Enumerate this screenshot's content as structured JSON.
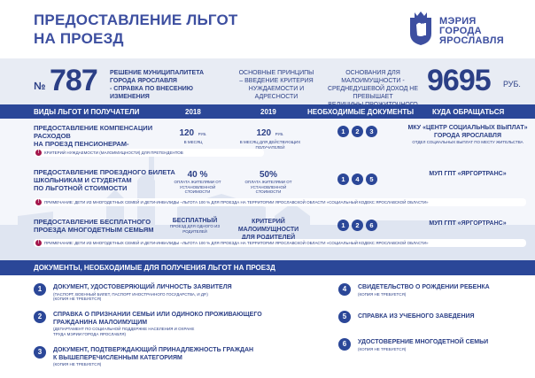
{
  "header": {
    "title_line1": "ПРЕДОСТАВЛЕНИЕ ЛЬГОТ",
    "title_line2": "НА ПРОЕЗД",
    "logo_line1": "МЭРИЯ",
    "logo_line2": "ГОРОДА",
    "logo_line3": "ЯРОСЛАВЛЯ"
  },
  "stats": {
    "no_label": "№",
    "decision_number": "787",
    "decision_text_1": "РЕШЕНИЕ МУНИЦИПАЛИТЕТА",
    "decision_text_2": "ГОРОДА ЯРОСЛАВЛЯ",
    "decision_text_3": "- СПРАВКА ПО ВНЕСЕНИЮ ИЗМЕНЕНИЯ",
    "principles_1": "ОСНОВНЫЕ ПРИНЦИПЫ",
    "principles_2": "– ВВЕДЕНИЕ КРИТЕРИЯ",
    "principles_3": "НУЖДАЕМОСТИ И АДРЕСНОСТИ",
    "basis_1": "ОСНОВАНИЯ ДЛЯ МАЛОИМУЩНОСТИ -",
    "basis_2": "СРЕДНЕДУШЕВОЙ ДОХОД НЕ ПРЕВЫШАЕТ",
    "basis_3": "ВЕЛИЧИНЫ ПРОЖИТОЧНОГО МИНИМУМА",
    "min_income": "9695",
    "currency": "РУБ."
  },
  "table": {
    "headers": {
      "kinds": "ВИДЫ ЛЬГОТ И ПОЛУЧАТЕЛИ",
      "y2018": "2018",
      "y2019": "2019",
      "docs": "НЕОБХОДИМЫЕ ДОКУМЕНТЫ",
      "where": "КУДА ОБРАЩАТЬСЯ"
    },
    "rows": [
      {
        "title_1": "ПРЕДОСТАВЛЕНИЕ КОМПЕНСАЦИИ РАСХОДОВ",
        "title_2": "НА ПРОЕЗД ПЕНСИОНЕРАМ-ОРДЕНОНОСЦАМ",
        "v2018": "120",
        "v2018_unit": "РУБ.",
        "v2018_sub": "В МЕСЯЦ",
        "v2019": "120",
        "v2019_unit": "РУБ.",
        "v2019_sub": "В МЕСЯЦ ДЛЯ ДЕЙСТВУЮЩИХ ПОЛУЧАТЕЛЕЙ",
        "docs": [
          "1",
          "2",
          "3"
        ],
        "where_1": "МКУ «ЦЕНТР СОЦИАЛЬНЫХ ВЫПЛАТ»",
        "where_2": "ГОРОДА ЯРОСЛАВЛЯ",
        "where_sub": "ОТДЕЛ СОЦИАЛЬНЫХ ВЫПЛАТ ПО МЕСТУ ЖИТЕЛЬСТВА",
        "note": "КРИТЕРИЙ НУЖДАЕМОСТИ (МАЛОИМУЩНОСТИ) ДЛЯ ПРЕТЕНДЕНТОВ"
      },
      {
        "title_1": "ПРЕДОСТАВЛЕНИЕ ПРОЕЗДНОГО БИЛЕТА",
        "title_2": "ШКОЛЬНИКАМ И СТУДЕНТАМ",
        "title_3": "ПО ЛЬГОТНОЙ СТОИМОСТИ",
        "v2018": "40 %",
        "v2018_sub": "ОПЛАТА ЖИТЕЛЯМИ ОТ УСТАНОВЛЕННОЙ СТОИМОСТИ",
        "v2019": "50%",
        "v2019_sub": "ОПЛАТА ЖИТЕЛЯМИ ОТ УСТАНОВЛЕННОЙ СТОИМОСТИ",
        "docs": [
          "1",
          "4",
          "5"
        ],
        "where_1": "МУП ГПТ «ЯРГОРТРАНС»",
        "note": "ПРИМЕЧАНИЕ: ДЕТИ ИЗ МНОГОДЕТНЫХ СЕМЕЙ И ДЕТИ-ИНВАЛИДЫ –ЛЬГОТА 100 % ДЛЯ ПРОЕЗДА НА ТЕРРИТОРИИ ЯРОСЛАВСКОЙ ОБЛАСТИ «СОЦИАЛЬНЫЙ КОДЕКС ЯРОСЛАВСКОЙ ОБЛАСТИ»"
      },
      {
        "title_1": "ПРЕДОСТАВЛЕНИЕ БЕСПЛАТНОГО",
        "title_2": "ПРОЕЗДА МНОГОДЕТНЫМ СЕМЬЯМ",
        "v2018": "БЕСПЛАТНЫЙ",
        "v2018_sub": "ПРОЕЗД ДЛЯ ОДНОГО ИЗ РОДИТЕЛЕЙ",
        "v2019_1": "КРИТЕРИЙ МАЛОИМУЩНОСТИ",
        "v2019_2": "ДЛЯ РОДИТЕЛЕЙ",
        "docs": [
          "1",
          "2",
          "6"
        ],
        "where_1": "МУП ГПТ «ЯРГОРТРАНС»",
        "note": "ПРИМЕЧАНИЕ: ДЕТИ ИЗ МНОГОДЕТНЫХ СЕМЕЙ И ДЕТИ-ИНВАЛИДЫ –ЛЬГОТА 100 % ДЛЯ ПРОЕЗДА НА ТЕРРИТОРИИ ЯРОСЛАВСКОЙ ОБЛАСТИ «СОЦИАЛЬНЫЙ КОДЕКС ЯРОСЛАВСКОЙ ОБЛАСТИ»"
      }
    ]
  },
  "documents": {
    "heading": "ДОКУМЕНТЫ, НЕОБХОДИМЫЕ ДЛЯ ПОЛУЧЕНИЯ ЛЬГОТ НА ПРОЕЗД",
    "items": [
      {
        "num": "1",
        "title": "ДОКУМЕНТ, УДОСТОВЕРЯЮЩИЙ ЛИЧНОСТЬ ЗАЯВИТЕЛЯ",
        "sub_1": "(ПАСПОРТ, ВОЕННЫЙ БИЛЕТ, ПАСПОРТ ИНОСТРАННОГО ГОСУДАРСТВА, И ДР.)",
        "sub_2": "(КОПИЯ НЕ ТРЕБУЕТСЯ)"
      },
      {
        "num": "2",
        "title_1": "СПРАВКА О ПРИЗНАНИИ СЕМЬИ ИЛИ ОДИНОКО ПРОЖИВАЮЩЕГО",
        "title_2": "ГРАЖДАНИНА МАЛОИМУЩИМ",
        "sub_1": "(ДЕПАРТАМЕНТ ПО СОЦИАЛЬНОЙ ПОДДЕРЖКЕ НАСЕЛЕНИЯ И ОХРАНЕ",
        "sub_2": "ТРУДА МЭРИИ ГОРОДА ЯРОСЛАВЛЯ)"
      },
      {
        "num": "3",
        "title_1": "ДОКУМЕНТ, ПОДТВЕРЖДАЮЩИЙ ПРИНАДЛЕЖНОСТЬ ГРАЖДАН",
        "title_2": "К ВЫШЕПЕРЕЧИСЛЕННЫМ КАТЕГОРИЯМ",
        "sub_1": "(КОПИЯ НЕ ТРЕБУЕТСЯ)"
      },
      {
        "num": "4",
        "title": "СВИДЕТЕЛЬСТВО О РОЖДЕНИИ РЕБЕНКА",
        "sub_1": "(КОПИЯ НЕ ТРЕБУЕТСЯ)"
      },
      {
        "num": "5",
        "title": "СПРАВКА ИЗ УЧЕБНОГО ЗАВЕДЕНИЯ"
      },
      {
        "num": "6",
        "title": "УДОСТОВЕРЕНИЕ МНОГОДЕТНОЙ СЕМЬИ",
        "sub_1": "(КОПИЯ НЕ ТРЕБУЕТСЯ)"
      }
    ]
  },
  "colors": {
    "primary": "#2b4798",
    "text": "#2b3f86",
    "accent": "#a3164c",
    "light": "#e8ecf4"
  }
}
